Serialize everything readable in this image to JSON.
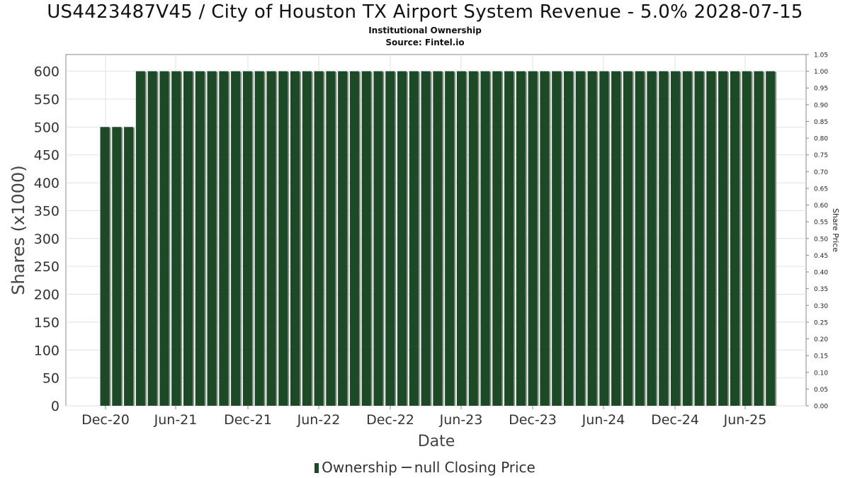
{
  "title": "US4423487V45 / City of Houston TX Airport System Revenue - 5.0% 2028-07-15",
  "subtitle": "Institutional Ownership",
  "source": "Source: Fintel.io",
  "legend": {
    "ownership": "Ownership",
    "price": "null Closing Price"
  },
  "colors": {
    "bar": "#1c4a26",
    "bar_shadow": "#8a8f88",
    "grid": "#e2e2e2",
    "axis": "#888888"
  },
  "chart_data": {
    "type": "bar",
    "title": "US4423487V45 / City of Houston TX Airport System Revenue - 5.0% 2028-07-15",
    "xlabel": "Date",
    "ylabel": "Shares (x1000)",
    "y2label": "Share Price",
    "ylim": [
      0,
      630
    ],
    "y2lim": [
      0,
      1.05
    ],
    "yticks": [
      0,
      50,
      100,
      150,
      200,
      250,
      300,
      350,
      400,
      450,
      500,
      550,
      600
    ],
    "y2ticks": [
      "0.00",
      "0.05",
      "0.10",
      "0.15",
      "0.20",
      "0.25",
      "0.30",
      "0.35",
      "0.40",
      "0.45",
      "0.50",
      "0.55",
      "0.60",
      "0.65",
      "0.70",
      "0.75",
      "0.80",
      "0.85",
      "0.90",
      "0.95",
      "1.00",
      "1.05"
    ],
    "xticks": [
      "Dec-20",
      "Jun-21",
      "Dec-21",
      "Jun-22",
      "Dec-22",
      "Jun-23",
      "Dec-23",
      "Jun-24",
      "Dec-24",
      "Jun-25"
    ],
    "grid": true,
    "legend_position": "bottom",
    "series": [
      {
        "name": "Ownership",
        "values": [
          500,
          500,
          500,
          600,
          600,
          600,
          600,
          600,
          600,
          600,
          600,
          600,
          600,
          600,
          600,
          600,
          600,
          600,
          600,
          600,
          600,
          600,
          600,
          600,
          600,
          600,
          600,
          600,
          600,
          600,
          600,
          600,
          600,
          600,
          600,
          600,
          600,
          600,
          600,
          600,
          600,
          600,
          600,
          600,
          600,
          600,
          600,
          600,
          600,
          600,
          600,
          600,
          600,
          600,
          600,
          600,
          600
        ]
      }
    ]
  }
}
